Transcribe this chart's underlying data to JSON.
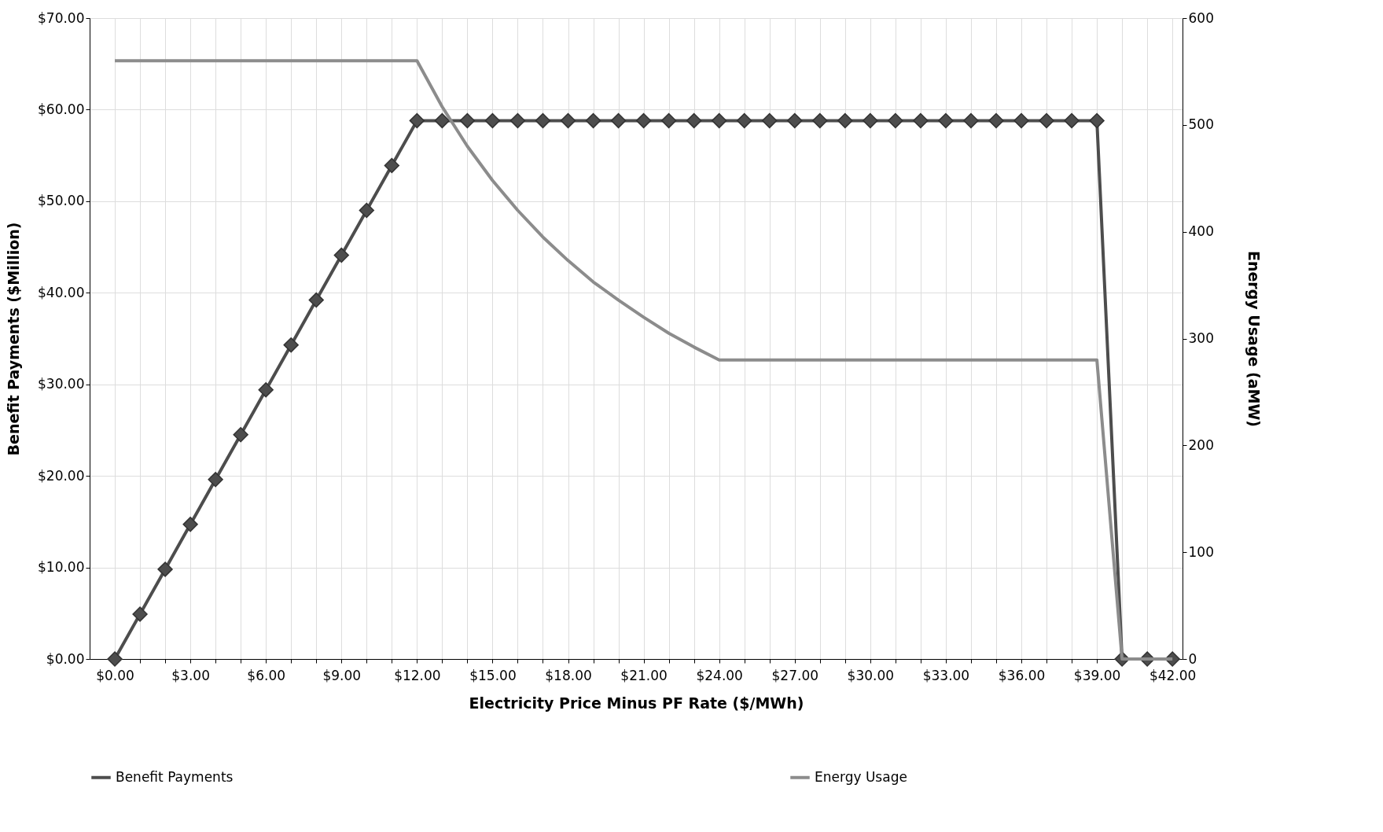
{
  "chart_data": {
    "type": "line",
    "xlabel": "Electricity Price Minus PF Rate  ($/MWh)",
    "ylabel": "Benefit Payments ($Million)",
    "y2label": "Energy Usage (aMW)",
    "x": [
      0,
      1,
      2,
      3,
      4,
      5,
      6,
      7,
      8,
      9,
      10,
      11,
      12,
      13,
      14,
      15,
      16,
      17,
      18,
      19,
      20,
      21,
      22,
      23,
      24,
      25,
      26,
      27,
      28,
      29,
      30,
      31,
      32,
      33,
      34,
      35,
      36,
      37,
      38,
      39,
      40,
      41,
      42
    ],
    "series": [
      {
        "name": "Benefit Payments",
        "color": "#4d4d4d",
        "marker": "diamond",
        "values": [
          0,
          4.9,
          9.8,
          14.7,
          19.6,
          24.5,
          29.4,
          34.3,
          39.2,
          44.1,
          49.0,
          53.9,
          58.8,
          58.8,
          58.8,
          58.8,
          58.8,
          58.8,
          58.8,
          58.8,
          58.8,
          58.8,
          58.8,
          58.8,
          58.8,
          58.8,
          58.8,
          58.8,
          58.8,
          58.8,
          58.8,
          58.8,
          58.8,
          58.8,
          58.8,
          58.8,
          58.8,
          58.8,
          58.8,
          58.8,
          0,
          0,
          0
        ]
      },
      {
        "name": "Energy Usage",
        "color": "#8c8c8c",
        "marker": "none",
        "axis": "y2",
        "values": [
          560,
          560,
          560,
          560,
          560,
          560,
          560,
          560,
          560,
          560,
          560,
          560,
          560,
          517,
          480,
          448,
          420,
          395,
          373,
          353,
          336,
          320,
          305,
          292,
          280,
          280,
          280,
          280,
          280,
          280,
          280,
          280,
          280,
          280,
          280,
          280,
          280,
          280,
          280,
          280,
          0,
          0,
          0
        ]
      }
    ],
    "xlim": [
      -1,
      42.4
    ],
    "xticks": [
      {
        "value": 0,
        "label": "$0.00"
      },
      {
        "value": 1,
        "label": null
      },
      {
        "value": 2,
        "label": null
      },
      {
        "value": 3,
        "label": "$3.00"
      },
      {
        "value": 4,
        "label": null
      },
      {
        "value": 5,
        "label": null
      },
      {
        "value": 6,
        "label": "$6.00"
      },
      {
        "value": 7,
        "label": null
      },
      {
        "value": 8,
        "label": null
      },
      {
        "value": 9,
        "label": "$9.00"
      },
      {
        "value": 10,
        "label": null
      },
      {
        "value": 11,
        "label": null
      },
      {
        "value": 12,
        "label": "$12.00"
      },
      {
        "value": 13,
        "label": null
      },
      {
        "value": 14,
        "label": null
      },
      {
        "value": 15,
        "label": "$15.00"
      },
      {
        "value": 16,
        "label": null
      },
      {
        "value": 17,
        "label": null
      },
      {
        "value": 18,
        "label": "$18.00"
      },
      {
        "value": 19,
        "label": null
      },
      {
        "value": 20,
        "label": null
      },
      {
        "value": 21,
        "label": "$21.00"
      },
      {
        "value": 22,
        "label": null
      },
      {
        "value": 23,
        "label": null
      },
      {
        "value": 24,
        "label": "$24.00"
      },
      {
        "value": 25,
        "label": null
      },
      {
        "value": 26,
        "label": null
      },
      {
        "value": 27,
        "label": "$27.00"
      },
      {
        "value": 28,
        "label": null
      },
      {
        "value": 29,
        "label": null
      },
      {
        "value": 30,
        "label": "$30.00"
      },
      {
        "value": 31,
        "label": null
      },
      {
        "value": 32,
        "label": null
      },
      {
        "value": 33,
        "label": "$33.00"
      },
      {
        "value": 34,
        "label": null
      },
      {
        "value": 35,
        "label": null
      },
      {
        "value": 36,
        "label": "$36.00"
      },
      {
        "value": 37,
        "label": null
      },
      {
        "value": 38,
        "label": null
      },
      {
        "value": 39,
        "label": "$39.00"
      },
      {
        "value": 40,
        "label": null
      },
      {
        "value": 41,
        "label": null
      },
      {
        "value": 42,
        "label": "$42.00"
      }
    ],
    "ylim": [
      0,
      70
    ],
    "yticks": [
      {
        "value": 0,
        "label": "$0.00"
      },
      {
        "value": 10,
        "label": "$10.00"
      },
      {
        "value": 20,
        "label": "$20.00"
      },
      {
        "value": 30,
        "label": "$30.00"
      },
      {
        "value": 40,
        "label": "$40.00"
      },
      {
        "value": 50,
        "label": "$50.00"
      },
      {
        "value": 60,
        "label": "$60.00"
      },
      {
        "value": 70,
        "label": "$70.00"
      }
    ],
    "y2lim": [
      0,
      600
    ],
    "y2ticks": [
      0,
      100,
      200,
      300,
      400,
      500,
      600
    ],
    "grid": true,
    "legend": "bottom"
  }
}
